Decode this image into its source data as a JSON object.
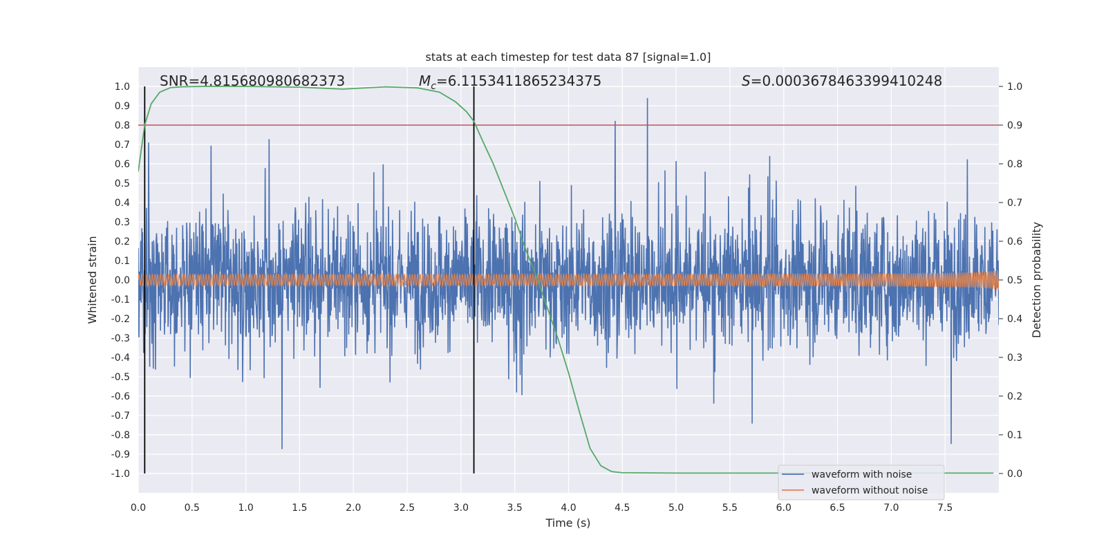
{
  "chart_data": {
    "type": "line",
    "title": "stats at each timestep for test data 87 [signal=1.0]",
    "xlabel": "Time (s)",
    "ylabel": "Whitened strain",
    "ylabel_right": "Detection probability",
    "xlim": [
      0.0,
      8.0
    ],
    "ylim": [
      -1.1,
      1.1
    ],
    "ylim_right": [
      -0.05,
      1.05
    ],
    "xticks": [
      "0.0",
      "0.5",
      "1.0",
      "1.5",
      "2.0",
      "2.5",
      "3.0",
      "3.5",
      "4.0",
      "4.5",
      "5.0",
      "5.5",
      "6.0",
      "6.5",
      "7.0",
      "7.5"
    ],
    "yticks_left": [
      "1.0",
      "0.9",
      "0.8",
      "0.7",
      "0.6",
      "0.5",
      "0.4",
      "0.3",
      "0.2",
      "0.1",
      "0.0",
      "-0.1",
      "-0.2",
      "-0.3",
      "-0.4",
      "-0.5",
      "-0.6",
      "-0.7",
      "-0.8",
      "-0.9",
      "-1.0"
    ],
    "yticks_right": [
      "1.0",
      "0.9",
      "0.8",
      "0.7",
      "0.6",
      "0.5",
      "0.4",
      "0.3",
      "0.2",
      "0.1",
      "0.0"
    ],
    "grid": true,
    "legend_position": "lower-right",
    "annotations": {
      "snr": "SNR=4.815680980682373",
      "mc_symbol": "M",
      "mc_sub": "c",
      "mc_value": "=6.1153411865234375",
      "s_symbol": "S",
      "s_value": "=0.0003678463399410248"
    },
    "threshold": 0.9,
    "vlines": [
      0.06,
      3.12
    ],
    "series": [
      {
        "name": "waveform with noise",
        "color": "#4c72b0",
        "x_range": [
          0.0,
          8.0
        ],
        "envelope": [
          -1.0,
          1.0
        ]
      },
      {
        "name": "waveform without noise",
        "color": "#dd8452",
        "x_range": [
          0.0,
          8.0
        ],
        "peak_amplitude": 0.15
      },
      {
        "color": "#55a868",
        "axis": "right",
        "x": [
          0.0,
          0.06,
          0.12,
          0.2,
          0.3,
          0.4,
          0.6,
          1.0,
          1.5,
          1.9,
          2.3,
          2.6,
          2.8,
          2.95,
          3.05,
          3.12,
          3.2,
          3.3,
          3.4,
          3.5,
          3.6,
          3.7,
          3.8,
          3.9,
          4.0,
          4.1,
          4.2,
          4.3,
          4.4,
          4.5,
          5.0,
          6.0,
          7.0,
          7.95
        ],
        "y": [
          0.78,
          0.9,
          0.955,
          0.985,
          0.997,
          0.999,
          1.0,
          1.0,
          0.998,
          0.993,
          0.999,
          0.996,
          0.985,
          0.96,
          0.935,
          0.91,
          0.86,
          0.8,
          0.73,
          0.66,
          0.58,
          0.51,
          0.43,
          0.35,
          0.26,
          0.16,
          0.065,
          0.02,
          0.005,
          0.002,
          0.001,
          0.001,
          0.001,
          0.001
        ]
      }
    ],
    "threshold_color": "#c44e52"
  }
}
